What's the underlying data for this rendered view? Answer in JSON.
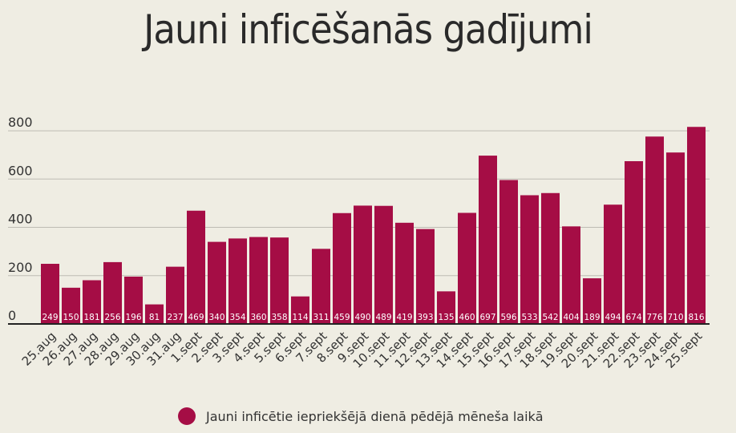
{
  "chart_data": {
    "type": "bar",
    "title": "Jauni inficēšanās gadījumi",
    "categories": [
      "25.aug",
      "26.aug",
      "27.aug",
      "28.aug",
      "29.aug",
      "30.aug",
      "31.aug",
      "1.sept",
      "2.sept",
      "3.sept",
      "4.sept",
      "5.sept",
      "6.sept",
      "7.sept",
      "8.sept",
      "9.sept",
      "10.sept",
      "11.sept",
      "12.sept",
      "13.sept",
      "14.sept",
      "15.sept",
      "16.sept",
      "17.sept",
      "18.sept",
      "19.sept",
      "20.sept",
      "21.sept",
      "22.sept",
      "23.sept",
      "24.sept",
      "25.sept"
    ],
    "series": [
      {
        "name": "Jauni inficētie iepriekšējā dienā pēdējā mēneša laikā",
        "values": [
          249,
          150,
          181,
          256,
          196,
          81,
          237,
          469,
          340,
          354,
          360,
          358,
          114,
          311,
          459,
          490,
          489,
          419,
          393,
          135,
          460,
          697,
          596,
          533,
          542,
          404,
          189,
          494,
          674,
          776,
          710,
          816
        ]
      }
    ],
    "yticks": [
      0,
      200,
      400,
      600,
      800
    ],
    "ylim": [
      0,
      860
    ],
    "grid": true,
    "legend_position": "bottom",
    "bar_color": "#a50d45",
    "data_labels": true
  }
}
